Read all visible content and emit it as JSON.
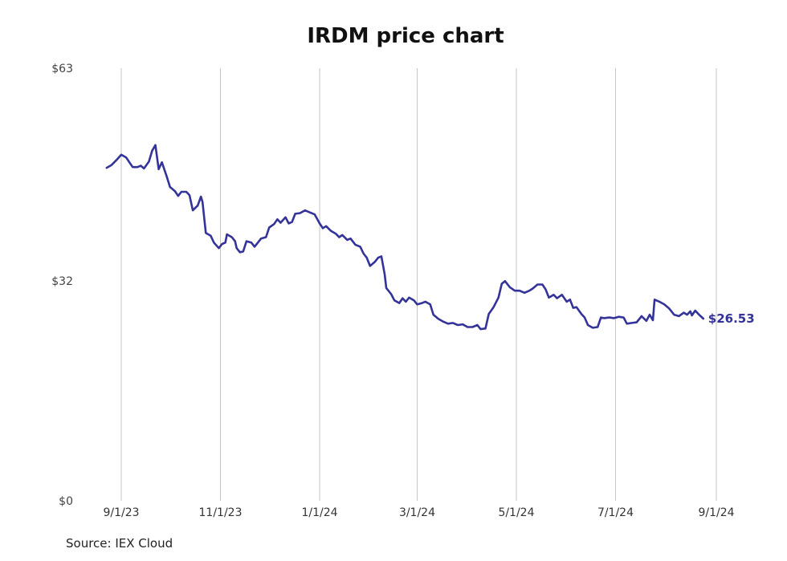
{
  "chart_data": {
    "type": "line",
    "title": "IRDM price chart",
    "source": "Source: IEX Cloud",
    "xlabel": "",
    "ylabel": "",
    "ylim": [
      0,
      63
    ],
    "y_ticks": [
      {
        "value": 0,
        "label": "$0"
      },
      {
        "value": 32,
        "label": "$32"
      },
      {
        "value": 63,
        "label": "$63"
      }
    ],
    "x_ticks": [
      "9/1/23",
      "11/1/23",
      "1/1/24",
      "3/1/24",
      "5/1/24",
      "7/1/24",
      "9/1/24"
    ],
    "x_range": [
      "2023-08-22",
      "2024-09-01"
    ],
    "grid": "vertical",
    "line_color": "#333399",
    "end_label": "$26.53",
    "series": [
      {
        "points": [
          [
            "2023-08-23",
            48.5
          ],
          [
            "2023-08-26",
            48.9
          ],
          [
            "2023-08-29",
            49.6
          ],
          [
            "2023-09-01",
            50.4
          ],
          [
            "2023-09-04",
            50.0
          ],
          [
            "2023-09-06",
            49.3
          ],
          [
            "2023-09-08",
            48.6
          ],
          [
            "2023-09-11",
            48.6
          ],
          [
            "2023-09-13",
            48.8
          ],
          [
            "2023-09-15",
            48.4
          ],
          [
            "2023-09-18",
            49.4
          ],
          [
            "2023-09-20",
            51.0
          ],
          [
            "2023-09-22",
            51.8
          ],
          [
            "2023-09-24",
            48.3
          ],
          [
            "2023-09-26",
            49.3
          ],
          [
            "2023-09-29",
            47.2
          ],
          [
            "2023-10-01",
            45.7
          ],
          [
            "2023-10-04",
            45.1
          ],
          [
            "2023-10-06",
            44.4
          ],
          [
            "2023-10-08",
            45.0
          ],
          [
            "2023-10-11",
            45.0
          ],
          [
            "2023-10-13",
            44.5
          ],
          [
            "2023-10-15",
            42.3
          ],
          [
            "2023-10-18",
            43.0
          ],
          [
            "2023-10-20",
            44.3
          ],
          [
            "2023-10-21",
            43.5
          ],
          [
            "2023-10-23",
            39.0
          ],
          [
            "2023-10-26",
            38.6
          ],
          [
            "2023-10-28",
            37.6
          ],
          [
            "2023-10-31",
            36.8
          ],
          [
            "2023-11-02",
            37.4
          ],
          [
            "2023-11-04",
            37.6
          ],
          [
            "2023-11-05",
            38.8
          ],
          [
            "2023-11-08",
            38.4
          ],
          [
            "2023-11-10",
            37.8
          ],
          [
            "2023-11-11",
            36.8
          ],
          [
            "2023-11-13",
            36.2
          ],
          [
            "2023-11-15",
            36.3
          ],
          [
            "2023-11-17",
            37.8
          ],
          [
            "2023-11-20",
            37.6
          ],
          [
            "2023-11-22",
            37.0
          ],
          [
            "2023-11-24",
            37.6
          ],
          [
            "2023-11-26",
            38.2
          ],
          [
            "2023-11-29",
            38.4
          ],
          [
            "2023-12-01",
            39.8
          ],
          [
            "2023-12-04",
            40.3
          ],
          [
            "2023-12-06",
            41.0
          ],
          [
            "2023-12-08",
            40.5
          ],
          [
            "2023-12-11",
            41.3
          ],
          [
            "2023-12-13",
            40.4
          ],
          [
            "2023-12-15",
            40.6
          ],
          [
            "2023-12-17",
            41.8
          ],
          [
            "2023-12-20",
            41.9
          ],
          [
            "2023-12-23",
            42.3
          ],
          [
            "2023-12-26",
            42.0
          ],
          [
            "2023-12-29",
            41.7
          ],
          [
            "2024-01-01",
            40.4
          ],
          [
            "2024-01-03",
            39.7
          ],
          [
            "2024-01-05",
            40.0
          ],
          [
            "2024-01-08",
            39.3
          ],
          [
            "2024-01-11",
            38.9
          ],
          [
            "2024-01-13",
            38.4
          ],
          [
            "2024-01-15",
            38.7
          ],
          [
            "2024-01-18",
            38.0
          ],
          [
            "2024-01-20",
            38.2
          ],
          [
            "2024-01-23",
            37.3
          ],
          [
            "2024-01-26",
            37.0
          ],
          [
            "2024-01-28",
            36.0
          ],
          [
            "2024-01-30",
            35.4
          ],
          [
            "2024-02-01",
            34.2
          ],
          [
            "2024-02-04",
            34.8
          ],
          [
            "2024-02-06",
            35.4
          ],
          [
            "2024-02-08",
            35.6
          ],
          [
            "2024-02-10",
            33.0
          ],
          [
            "2024-02-11",
            31.0
          ],
          [
            "2024-02-14",
            30.1
          ],
          [
            "2024-02-16",
            29.2
          ],
          [
            "2024-02-19",
            28.8
          ],
          [
            "2024-02-21",
            29.5
          ],
          [
            "2024-02-23",
            29.0
          ],
          [
            "2024-02-25",
            29.6
          ],
          [
            "2024-02-28",
            29.2
          ],
          [
            "2024-03-01",
            28.6
          ],
          [
            "2024-03-04",
            28.8
          ],
          [
            "2024-03-06",
            29.0
          ],
          [
            "2024-03-09",
            28.6
          ],
          [
            "2024-03-11",
            27.1
          ],
          [
            "2024-03-14",
            26.5
          ],
          [
            "2024-03-17",
            26.1
          ],
          [
            "2024-03-20",
            25.8
          ],
          [
            "2024-03-23",
            25.9
          ],
          [
            "2024-03-26",
            25.6
          ],
          [
            "2024-03-29",
            25.7
          ],
          [
            "2024-04-01",
            25.3
          ],
          [
            "2024-04-04",
            25.3
          ],
          [
            "2024-04-07",
            25.6
          ],
          [
            "2024-04-09",
            25.0
          ],
          [
            "2024-04-12",
            25.1
          ],
          [
            "2024-04-14",
            27.2
          ],
          [
            "2024-04-17",
            28.2
          ],
          [
            "2024-04-20",
            29.6
          ],
          [
            "2024-04-22",
            31.6
          ],
          [
            "2024-04-24",
            32.0
          ],
          [
            "2024-04-27",
            31.1
          ],
          [
            "2024-04-30",
            30.6
          ],
          [
            "2024-05-03",
            30.6
          ],
          [
            "2024-05-06",
            30.3
          ],
          [
            "2024-05-09",
            30.6
          ],
          [
            "2024-05-11",
            30.9
          ],
          [
            "2024-05-14",
            31.5
          ],
          [
            "2024-05-17",
            31.5
          ],
          [
            "2024-05-19",
            30.8
          ],
          [
            "2024-05-21",
            29.6
          ],
          [
            "2024-05-24",
            30.0
          ],
          [
            "2024-05-26",
            29.5
          ],
          [
            "2024-05-29",
            30.0
          ],
          [
            "2024-06-01",
            29.0
          ],
          [
            "2024-06-03",
            29.3
          ],
          [
            "2024-06-05",
            28.1
          ],
          [
            "2024-06-07",
            28.2
          ],
          [
            "2024-06-10",
            27.2
          ],
          [
            "2024-06-12",
            26.7
          ],
          [
            "2024-06-14",
            25.6
          ],
          [
            "2024-06-17",
            25.2
          ],
          [
            "2024-06-20",
            25.3
          ],
          [
            "2024-06-22",
            26.7
          ],
          [
            "2024-06-24",
            26.6
          ],
          [
            "2024-06-27",
            26.7
          ],
          [
            "2024-06-30",
            26.6
          ],
          [
            "2024-07-03",
            26.8
          ],
          [
            "2024-07-06",
            26.7
          ],
          [
            "2024-07-08",
            25.8
          ],
          [
            "2024-07-11",
            25.9
          ],
          [
            "2024-07-14",
            26.0
          ],
          [
            "2024-07-17",
            26.9
          ],
          [
            "2024-07-20",
            26.2
          ],
          [
            "2024-07-22",
            27.1
          ],
          [
            "2024-07-24",
            26.3
          ],
          [
            "2024-07-25",
            29.3
          ],
          [
            "2024-07-28",
            29.0
          ],
          [
            "2024-07-31",
            28.6
          ],
          [
            "2024-08-03",
            28.0
          ],
          [
            "2024-08-06",
            27.1
          ],
          [
            "2024-08-09",
            26.9
          ],
          [
            "2024-08-12",
            27.4
          ],
          [
            "2024-08-14",
            27.1
          ],
          [
            "2024-08-16",
            27.6
          ],
          [
            "2024-08-17",
            27.0
          ],
          [
            "2024-08-19",
            27.7
          ],
          [
            "2024-08-21",
            27.2
          ],
          [
            "2024-08-24",
            26.53
          ]
        ]
      }
    ]
  }
}
